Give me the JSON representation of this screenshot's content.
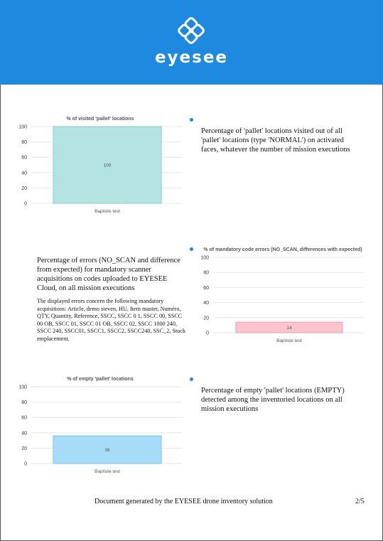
{
  "header": {
    "brand": "eyesee",
    "accent_color": "#1d8ae0",
    "logo_icon": "eyesee-logo-icon"
  },
  "sections": [
    {
      "description": "Percentage of 'pallet' locations visited out of all 'pallet' locations (type 'NORMAL') on activated faces, whatever the number of mission executions"
    },
    {
      "description": "Percentage of errors (NO_SCAN and difference from expected) for mandatory scanner acquisitions on codes uploaded to EYESEE Cloud, on all mission executions",
      "note": "The displayed errors concern the following mandatory acquisitions: Article, demo steven, HU, Item master, Numéro, QTY, Quantity, Reference, SSCC, SSCC 0  1, SSCC 00, SSCC 00 OB, SSCC 01, SSCC 01 OB, SSCC 02, SSCC 1000 240, SSCC 240, SSCC01, SSCC1, SSCC2, SSCC240, SSC_2, Stock emplacement."
    },
    {
      "description": "Percentage of empty 'pallet' locations (EMPTY) detected among the inventoried locations on all mission executions"
    }
  ],
  "chart_data": [
    {
      "type": "bar",
      "title": "% of visited 'pallet' locations",
      "categories": [
        "Baptiste test"
      ],
      "values": [
        100
      ],
      "ylim": [
        0,
        100
      ],
      "yticks": [
        "100",
        "80",
        "60",
        "40",
        "20",
        "0"
      ],
      "grid": true,
      "bar_fill": "#b3e3e3",
      "bar_stroke": "#7fcfcf"
    },
    {
      "type": "bar",
      "title": "% of mandatory code errors (NO_SCAN, differences with expected)",
      "categories": [
        "Baptiste test"
      ],
      "values": [
        14
      ],
      "ylim": [
        0,
        100
      ],
      "yticks": [
        "100",
        "80",
        "60",
        "40",
        "20",
        "0"
      ],
      "grid": true,
      "bar_fill": "#fbc4d0",
      "bar_stroke": "#f29bb0"
    },
    {
      "type": "bar",
      "title": "% of empty 'pallet' locations",
      "categories": [
        "Baptiste test"
      ],
      "values": [
        36
      ],
      "ylim": [
        0,
        100
      ],
      "yticks": [
        "100",
        "80",
        "60",
        "40",
        "20",
        "0"
      ],
      "grid": true,
      "bar_fill": "#a6dcf7",
      "bar_stroke": "#6cc3f0"
    }
  ],
  "footer": {
    "text": "Document generated by the EYESEE drone inventory solution",
    "page": "2/5"
  }
}
